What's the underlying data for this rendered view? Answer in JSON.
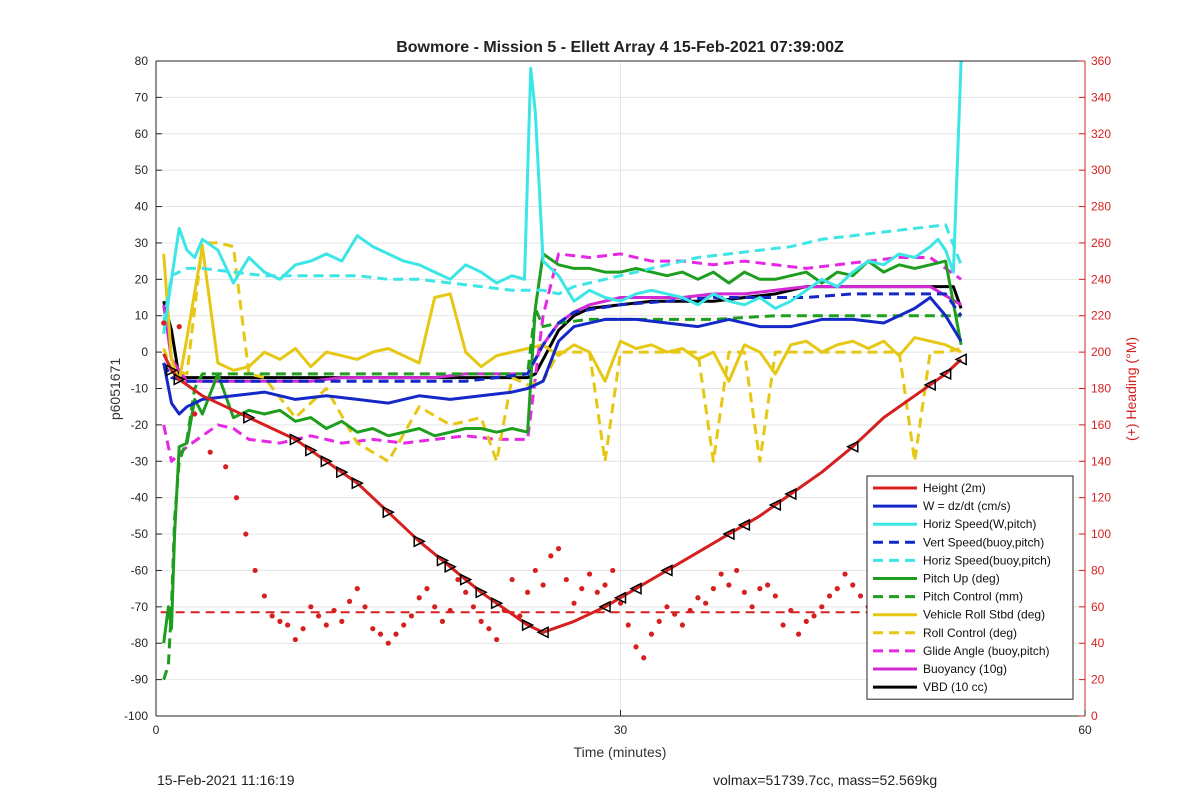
{
  "chart_data": {
    "type": "line",
    "title": "Bowmore - Mission 5 - Ellett Array 4 15-Feb-2021 07:39:00Z",
    "xlabel": "Time (minutes)",
    "ylabel": "p6051671",
    "y2label": "(+) Heading (°M)",
    "xlim": [
      0,
      60
    ],
    "ylim": [
      -100,
      80
    ],
    "y2lim": [
      0,
      360
    ],
    "xticks": [
      "0",
      "30",
      "60"
    ],
    "yticks": [
      "80",
      "70",
      "60",
      "50",
      "40",
      "30",
      "20",
      "10",
      "0",
      "-10",
      "-20",
      "-30",
      "-40",
      "-50",
      "-60",
      "-70",
      "-80",
      "-90",
      "-100"
    ],
    "y2ticks": [
      "360",
      "340",
      "320",
      "300",
      "280",
      "260",
      "240",
      "220",
      "200",
      "180",
      "160",
      "140",
      "120",
      "100",
      "80",
      "60",
      "40",
      "20",
      "0"
    ],
    "grid": true,
    "legend_position": "bottom-right",
    "series": [
      {
        "name": "Height (2m)",
        "color": "#d62020",
        "style": "solid",
        "axis": "left",
        "x": [
          0.5,
          1,
          1.5,
          2,
          3,
          5,
          7,
          9,
          11,
          13,
          15,
          17,
          19,
          21,
          23,
          24,
          25,
          27,
          29,
          31,
          33,
          35,
          37,
          39,
          41,
          43,
          45,
          47,
          49,
          51,
          52
        ],
        "y": [
          -0.5,
          -5,
          -7.5,
          -9,
          -12,
          -16,
          -20,
          -24,
          -30,
          -36,
          -44,
          -52,
          -59,
          -66,
          -72,
          -75,
          -77,
          -74,
          -70,
          -65,
          -60,
          -55,
          -50,
          -45,
          -39,
          -33,
          -26,
          -18,
          -12,
          -6,
          -2
        ]
      },
      {
        "name": "W = dz/dt (cm/s)",
        "color": "#1428c8",
        "style": "solid",
        "axis": "left",
        "x": [
          0.5,
          1,
          1.5,
          2,
          3,
          5,
          7,
          9,
          11,
          13,
          15,
          17,
          19,
          21,
          23,
          24,
          25,
          26,
          27,
          29,
          31,
          33,
          35,
          37,
          39,
          41,
          43,
          45,
          47,
          49,
          50,
          51,
          52
        ],
        "y": [
          -3,
          -14,
          -17,
          -15,
          -13,
          -12,
          -11,
          -13,
          -12,
          -13,
          -14,
          -12,
          -13,
          -12,
          -11,
          -10,
          -8,
          3,
          7,
          9,
          9,
          8,
          7,
          9,
          7,
          7,
          9,
          9,
          8,
          12,
          15,
          10,
          3
        ]
      },
      {
        "name": "Horiz Speed(W,pitch)",
        "color": "#3ce6e6",
        "style": "solid",
        "axis": "left",
        "x": [
          0.5,
          1,
          1.5,
          2,
          2.5,
          3,
          4,
          5,
          6,
          7,
          8,
          9,
          10,
          11,
          12,
          13,
          14,
          15,
          16,
          17,
          18,
          19,
          20,
          21,
          22,
          23,
          23.8,
          24.2,
          24.5,
          25,
          26,
          27,
          28,
          29,
          30,
          31,
          32,
          33,
          34,
          35,
          36,
          37,
          38,
          39,
          40,
          41,
          42,
          43,
          44,
          45,
          46,
          47,
          48,
          49,
          50,
          50.5,
          51,
          51.5,
          52
        ],
        "y": [
          5,
          20,
          34,
          28,
          26,
          31,
          28,
          19,
          26,
          22,
          20,
          24,
          25,
          27,
          25,
          32,
          29,
          27,
          25,
          24,
          22,
          20,
          24,
          22,
          19,
          21,
          20,
          78,
          66,
          25,
          21,
          14,
          17,
          15,
          14,
          16,
          17,
          16,
          15,
          13,
          16,
          14,
          13,
          15,
          12,
          14,
          17,
          20,
          18,
          22,
          25,
          24,
          27,
          26,
          29,
          31,
          28,
          22,
          80
        ]
      },
      {
        "name": "Vert Speed(buoy,pitch)",
        "color": "#1428c8",
        "style": "dashed",
        "axis": "left",
        "x": [
          0.5,
          1,
          2,
          4,
          6,
          8,
          10,
          12,
          14,
          16,
          18,
          20,
          22,
          24,
          25,
          26,
          27,
          30,
          33,
          36,
          39,
          42,
          45,
          48,
          51,
          52
        ],
        "y": [
          -3,
          -7,
          -8,
          -8,
          -8,
          -8,
          -8,
          -8,
          -8,
          -8,
          -8,
          -8,
          -7,
          -6,
          2,
          8,
          11,
          13,
          14,
          15,
          15,
          15,
          16,
          16,
          16,
          10
        ]
      },
      {
        "name": "Horiz Speed(buoy,pitch)",
        "color": "#3ce6e6",
        "style": "dashed",
        "axis": "left",
        "x": [
          0.5,
          1,
          2,
          3,
          5,
          7,
          9,
          11,
          13,
          15,
          17,
          19,
          21,
          23,
          24,
          25,
          26,
          27,
          29,
          31,
          33,
          35,
          37,
          39,
          41,
          43,
          45,
          47,
          49,
          51,
          52
        ],
        "y": [
          8,
          21,
          23,
          23,
          22,
          21,
          21,
          21,
          21,
          20,
          20,
          19,
          18,
          17,
          17,
          17,
          16,
          18,
          20,
          22,
          24,
          26,
          27,
          28,
          29,
          31,
          32,
          33,
          34,
          35,
          24
        ]
      },
      {
        "name": "Pitch Up (deg)",
        "color": "#1e9e1e",
        "style": "solid",
        "axis": "left",
        "x": [
          0.5,
          0.8,
          1,
          1.2,
          1.5,
          2,
          2.5,
          3,
          4,
          5,
          6,
          7,
          8,
          9,
          10,
          11,
          12,
          13,
          14,
          15,
          16,
          17,
          18,
          19,
          20,
          21,
          22,
          23,
          24,
          24.5,
          25,
          26,
          27,
          28,
          29,
          30,
          31,
          32,
          33,
          34,
          35,
          36,
          37,
          38,
          39,
          40,
          41,
          42,
          43,
          44,
          45,
          46,
          47,
          48,
          49,
          50,
          51,
          52
        ],
        "y": [
          -80,
          -70,
          -76,
          -50,
          -26,
          -25,
          -13,
          -17,
          -6,
          -18,
          -16,
          -17,
          -16,
          -19,
          -18,
          -21,
          -19,
          -22,
          -21,
          -23,
          -22,
          -21,
          -23,
          -22,
          -21,
          -21,
          -22,
          -21,
          -22,
          12,
          27,
          24,
          23,
          23,
          22,
          22,
          23,
          22,
          21,
          22,
          20,
          22,
          19,
          22,
          20,
          20,
          21,
          22,
          19,
          22,
          21,
          25,
          22,
          24,
          23,
          24,
          25,
          2
        ]
      },
      {
        "name": "Pitch Control (mm)",
        "color": "#1e9e1e",
        "style": "dashed",
        "axis": "left",
        "x": [
          0.5,
          0.8,
          1,
          1.2,
          1.5,
          2,
          2.5,
          3,
          4,
          5,
          8,
          12,
          16,
          20,
          24,
          24.5,
          25,
          26,
          28,
          32,
          36,
          40,
          44,
          48,
          52
        ],
        "y": [
          -90,
          -86,
          -70,
          -46,
          -30,
          -24,
          -10,
          -6,
          -6,
          -6,
          -6,
          -6,
          -6,
          -6,
          -6,
          12,
          7,
          8,
          9,
          9,
          9,
          10,
          10,
          10,
          10
        ]
      },
      {
        "name": "Vehicle Roll Stbd (deg)",
        "color": "#e6c814",
        "style": "solid",
        "axis": "left",
        "x": [
          0.5,
          1,
          1.5,
          2,
          3,
          4,
          5,
          6,
          7,
          8,
          9,
          10,
          11,
          12,
          13,
          14,
          15,
          16,
          17,
          18,
          19,
          20,
          21,
          22,
          23,
          24,
          25,
          26,
          27,
          28,
          29,
          30,
          31,
          32,
          33,
          34,
          35,
          36,
          37,
          38,
          39,
          40,
          41,
          42,
          43,
          44,
          45,
          46,
          47,
          48,
          49,
          50,
          51,
          52
        ],
        "y": [
          27,
          -2,
          -8,
          4,
          29,
          -3,
          -5,
          -4,
          0,
          -2,
          1,
          -4,
          0,
          -1,
          -2,
          0,
          1,
          -1,
          -3,
          15,
          16,
          0,
          -4,
          -1,
          0,
          1,
          2,
          -1,
          2,
          0,
          -8,
          3,
          1,
          2,
          0,
          1,
          -2,
          0,
          -8,
          2,
          0,
          -6,
          2,
          3,
          0,
          2,
          3,
          1,
          3,
          -1,
          4,
          3,
          2,
          0
        ]
      },
      {
        "name": "Roll Control (deg)",
        "color": "#e6c814",
        "style": "dashed",
        "axis": "left",
        "x": [
          0.5,
          1,
          2,
          3,
          4,
          5,
          6,
          7,
          9,
          11,
          13,
          15,
          17,
          19,
          21,
          22,
          23,
          24,
          25,
          26,
          28,
          29,
          30,
          31,
          33,
          35,
          36,
          37,
          38,
          39,
          40,
          41,
          43,
          45,
          47,
          48,
          49,
          50,
          51,
          52
        ],
        "y": [
          1,
          -5,
          -6,
          30,
          30,
          29,
          -6,
          -7,
          -18,
          -10,
          -25,
          -30,
          -15,
          -20,
          -18,
          -30,
          -7,
          -9,
          -8,
          0,
          0,
          -30,
          0,
          0,
          0,
          0,
          -30,
          0,
          0,
          -30,
          0,
          0,
          0,
          0,
          0,
          0,
          -30,
          0,
          0,
          1
        ]
      },
      {
        "name": "Glide Angle (buoy,pitch)",
        "color": "#e628e6",
        "style": "dashed",
        "axis": "left",
        "x": [
          0.5,
          1,
          1.5,
          2,
          3,
          4,
          5,
          6,
          8,
          10,
          12,
          14,
          16,
          18,
          20,
          22,
          23,
          24,
          25,
          26,
          28,
          30,
          32,
          34,
          36,
          38,
          40,
          42,
          44,
          46,
          48,
          50,
          52
        ],
        "y": [
          -20,
          -30,
          -28,
          -26,
          -23,
          -20,
          -21,
          -24,
          -25,
          -23,
          -25,
          -24,
          -25,
          -24,
          -23,
          -24,
          -24,
          -24,
          10,
          27,
          26,
          27,
          25,
          25,
          24,
          25,
          24,
          23,
          24,
          25,
          26,
          26,
          20
        ]
      },
      {
        "name": "Buoyancy (10g)",
        "color": "#d22ad2",
        "style": "solid",
        "axis": "left",
        "x": [
          0.5,
          1,
          2,
          4,
          6,
          8,
          10,
          12,
          14,
          16,
          18,
          20,
          22,
          24,
          25,
          26,
          27,
          28,
          30,
          32,
          34,
          36,
          38,
          40,
          42,
          44,
          46,
          48,
          50,
          52
        ],
        "y": [
          13,
          -2,
          -8,
          -8,
          -8,
          -8,
          -8,
          -7,
          -7,
          -7,
          -7,
          -6,
          -6,
          -6,
          2,
          8,
          11,
          13,
          15,
          15,
          15,
          16,
          16,
          17,
          18,
          18,
          18,
          18,
          18,
          13
        ]
      },
      {
        "name": "VBD (10 cc)",
        "color": "#000000",
        "style": "solid",
        "axis": "left",
        "x": [
          0.5,
          1,
          1.5,
          2,
          4,
          6,
          8,
          10,
          12,
          14,
          16,
          18,
          20,
          22,
          24,
          24.5,
          25,
          26,
          27,
          28,
          30,
          32,
          34,
          36,
          38,
          40,
          42,
          44,
          46,
          48,
          50,
          51,
          51.5,
          52
        ],
        "y": [
          14,
          6,
          -7,
          -7,
          -7,
          -7,
          -7,
          -7,
          -7,
          -7,
          -7,
          -7,
          -7,
          -7,
          -7,
          -6,
          -2,
          6,
          10,
          12,
          13,
          14,
          14,
          14,
          15,
          16,
          18,
          18,
          18,
          18,
          18,
          18,
          18,
          12
        ]
      },
      {
        "name": "Heading",
        "color": "#d62020",
        "style": "dots",
        "axis": "right",
        "x": [
          0.5,
          1.5,
          2.5,
          3.5,
          4.5,
          5.2,
          5.8,
          6.4,
          7,
          7.5,
          8,
          8.5,
          9,
          9.5,
          10,
          10.5,
          11,
          11.5,
          12,
          12.5,
          13,
          13.5,
          14,
          14.5,
          15,
          15.5,
          16,
          16.5,
          17,
          17.5,
          18,
          18.5,
          19,
          19.5,
          20,
          20.5,
          21,
          21.5,
          22,
          22.5,
          23,
          23.5,
          24,
          24.5,
          25,
          25.5,
          26,
          26.5,
          27,
          27.5,
          28,
          28.5,
          29,
          29.5,
          30,
          30.5,
          31,
          31.5,
          32,
          32.5,
          33,
          33.5,
          34,
          34.5,
          35,
          35.5,
          36,
          36.5,
          37,
          37.5,
          38,
          38.5,
          39,
          39.5,
          40,
          40.5,
          41,
          41.5,
          42,
          42.5,
          43,
          43.5,
          44,
          44.5,
          45,
          45.5,
          46,
          46.5,
          47,
          47.5,
          48,
          48.5,
          49,
          49.5,
          50,
          50.5,
          51
        ],
        "y": [
          216,
          214,
          166,
          145,
          137,
          120,
          100,
          80,
          66,
          55,
          52,
          50,
          42,
          48,
          60,
          55,
          50,
          58,
          52,
          63,
          70,
          60,
          48,
          45,
          40,
          45,
          50,
          55,
          65,
          70,
          60,
          52,
          58,
          75,
          68,
          60,
          52,
          48,
          42,
          58,
          75,
          55,
          68,
          80,
          72,
          88,
          92,
          75,
          62,
          70,
          78,
          68,
          72,
          80,
          62,
          50,
          38,
          32,
          45,
          52,
          60,
          56,
          50,
          58,
          65,
          62,
          70,
          78,
          72,
          80,
          68,
          60,
          70,
          72,
          66,
          50,
          58,
          45,
          52,
          55,
          60,
          66,
          70,
          78,
          72,
          66,
          60,
          56,
          52,
          60,
          66,
          72,
          62,
          60,
          52,
          45,
          40
        ]
      }
    ],
    "height_markers": {
      "x": [
        1,
        1.5,
        6,
        9,
        10,
        11,
        12,
        13,
        15,
        17,
        18.5,
        19,
        20,
        21,
        22,
        24,
        25,
        29,
        30,
        31,
        33,
        37,
        38,
        40,
        41,
        45,
        50,
        51,
        52
      ]
    },
    "heading_reference": {
      "value": 57
    }
  },
  "footer": {
    "timestamp": "15-Feb-2021 11:16:19",
    "vehicle_info": "volmax=51739.7cc, mass=52.569kg"
  }
}
